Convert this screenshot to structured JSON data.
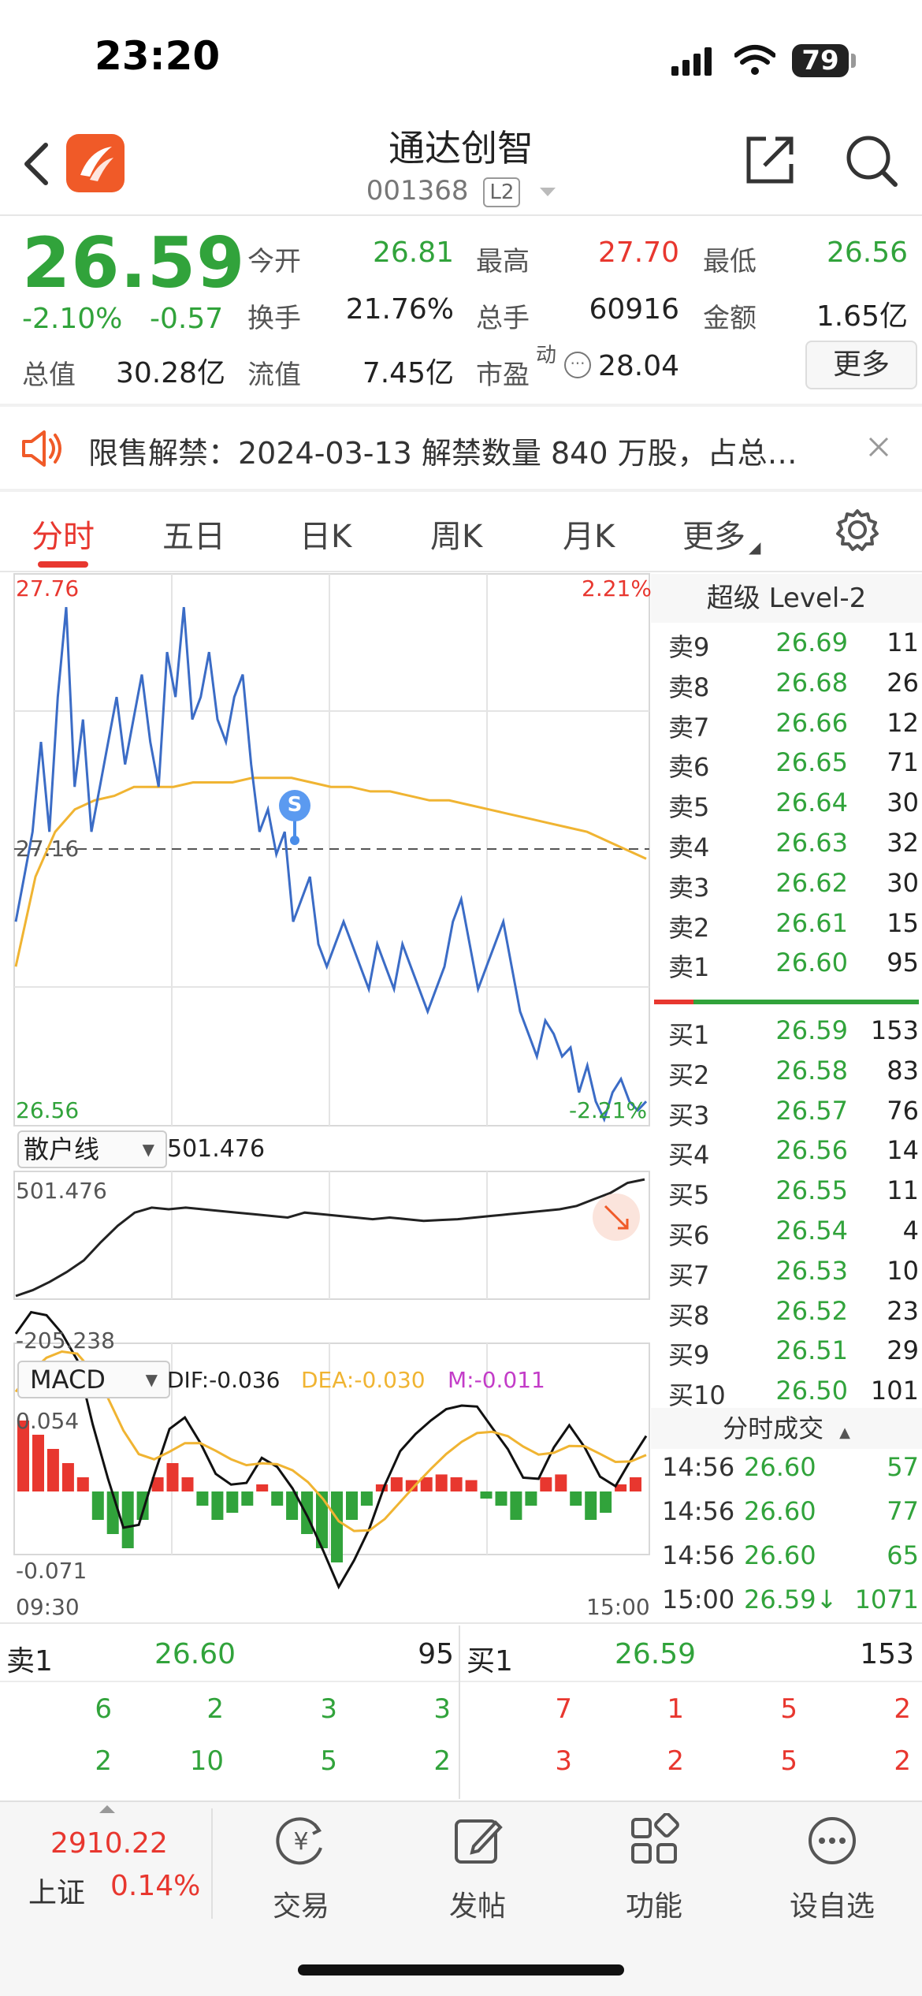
{
  "status_bar": {
    "time": "23:20",
    "battery": "79"
  },
  "header": {
    "title": "通达创智",
    "code": "001368",
    "level": "L2"
  },
  "quote": {
    "price": "26.59",
    "change_pct": "-2.10%",
    "change": "-0.57",
    "stats": [
      {
        "label": "今开",
        "value": "26.81",
        "color": "green"
      },
      {
        "label": "最高",
        "value": "27.70",
        "color": "red"
      },
      {
        "label": "最低",
        "value": "26.56",
        "color": "green"
      },
      {
        "label": "换手",
        "value": "21.76%",
        "color": "black"
      },
      {
        "label": "总手",
        "value": "60916",
        "color": "black"
      },
      {
        "label": "金额",
        "value": "1.65亿",
        "color": "black"
      },
      {
        "label": "总值",
        "value": "30.28亿",
        "color": "black"
      },
      {
        "label": "流值",
        "value": "7.45亿",
        "color": "black"
      },
      {
        "label": "市盈",
        "value": "28.04",
        "color": "black"
      }
    ],
    "pe_sup": "动",
    "more_label": "更多"
  },
  "notice": {
    "text": "限售解禁：2024-03-13 解禁数量 840 万股，占总…"
  },
  "tabs": [
    "分时",
    "五日",
    "日K",
    "周K",
    "月K",
    "更多"
  ],
  "intraday": {
    "high": "27.76",
    "high_pct": "2.21%",
    "low": "26.56",
    "low_pct": "-2.21%",
    "mid": "27.16",
    "marker": "S",
    "price_series": [
      27.0,
      27.1,
      27.2,
      27.4,
      27.2,
      27.5,
      27.7,
      27.3,
      27.45,
      27.2,
      27.3,
      27.4,
      27.5,
      27.35,
      27.45,
      27.55,
      27.4,
      27.3,
      27.6,
      27.5,
      27.7,
      27.45,
      27.5,
      27.6,
      27.45,
      27.4,
      27.5,
      27.55,
      27.35,
      27.2,
      27.25,
      27.15,
      27.2,
      27.0,
      27.05,
      27.1,
      26.95,
      26.9,
      26.95,
      27.0,
      26.95,
      26.9,
      26.85,
      26.95,
      26.9,
      26.85,
      26.95,
      26.9,
      26.85,
      26.8,
      26.85,
      26.9,
      27.0,
      27.05,
      26.95,
      26.85,
      26.9,
      26.95,
      27.0,
      26.9,
      26.8,
      26.75,
      26.7,
      26.78,
      26.75,
      26.7,
      26.72,
      26.62,
      26.68,
      26.6,
      26.56,
      26.62,
      26.65,
      26.6,
      26.58,
      26.6
    ],
    "avg_series": [
      26.9,
      27.1,
      27.2,
      27.25,
      27.27,
      27.28,
      27.3,
      27.3,
      27.3,
      27.31,
      27.31,
      27.31,
      27.32,
      27.32,
      27.32,
      27.31,
      27.3,
      27.3,
      27.29,
      27.29,
      27.28,
      27.27,
      27.27,
      27.26,
      27.25,
      27.24,
      27.23,
      27.22,
      27.21,
      27.2,
      27.18,
      27.16,
      27.14
    ],
    "retail_label": "散户线",
    "retail_value": "501.476",
    "retail_high": "501.476",
    "retail_low": "-205.238",
    "retail_series": [
      -205,
      -170,
      -120,
      -60,
      10,
      120,
      220,
      300,
      330,
      320,
      330,
      320,
      310,
      300,
      290,
      280,
      270,
      300,
      290,
      280,
      270,
      260,
      270,
      260,
      250,
      255,
      260,
      270,
      280,
      290,
      300,
      310,
      320,
      340,
      380,
      420,
      480,
      501
    ],
    "macd_label": "MACD",
    "dif": "DIF:-0.036",
    "dea": "DEA:-0.030",
    "m": "M:-0.011",
    "macd_high": "0.054",
    "macd_low": "-0.071",
    "time_start": "09:30",
    "time_end": "15:00",
    "macd_bars": [
      0.05,
      0.04,
      0.03,
      0.02,
      0.01,
      -0.02,
      -0.03,
      -0.04,
      -0.02,
      0.01,
      0.02,
      0.01,
      -0.01,
      -0.02,
      -0.015,
      -0.01,
      0.005,
      -0.01,
      -0.02,
      -0.03,
      -0.04,
      -0.05,
      -0.02,
      -0.01,
      0.005,
      0.01,
      0.008,
      0.01,
      0.012,
      0.01,
      0.008,
      -0.005,
      -0.01,
      -0.02,
      -0.01,
      0.01,
      0.012,
      -0.01,
      -0.02,
      -0.015,
      0.005,
      0.01
    ]
  },
  "orderbook": {
    "title": "超级 Level-2",
    "asks": [
      {
        "name": "卖9",
        "price": "26.69",
        "qty": "11"
      },
      {
        "name": "卖8",
        "price": "26.68",
        "qty": "26"
      },
      {
        "name": "卖7",
        "price": "26.66",
        "qty": "12"
      },
      {
        "name": "卖6",
        "price": "26.65",
        "qty": "71"
      },
      {
        "name": "卖5",
        "price": "26.64",
        "qty": "30"
      },
      {
        "name": "卖4",
        "price": "26.63",
        "qty": "32"
      },
      {
        "name": "卖3",
        "price": "26.62",
        "qty": "30"
      },
      {
        "name": "卖2",
        "price": "26.61",
        "qty": "15"
      },
      {
        "name": "卖1",
        "price": "26.60",
        "qty": "95"
      }
    ],
    "bids": [
      {
        "name": "买1",
        "price": "26.59",
        "qty": "153"
      },
      {
        "name": "买2",
        "price": "26.58",
        "qty": "83"
      },
      {
        "name": "买3",
        "price": "26.57",
        "qty": "76"
      },
      {
        "name": "买4",
        "price": "26.56",
        "qty": "14"
      },
      {
        "name": "买5",
        "price": "26.55",
        "qty": "11"
      },
      {
        "name": "买6",
        "price": "26.54",
        "qty": "4"
      },
      {
        "name": "买7",
        "price": "26.53",
        "qty": "10"
      },
      {
        "name": "买8",
        "price": "26.52",
        "qty": "23"
      },
      {
        "name": "买9",
        "price": "26.51",
        "qty": "29"
      },
      {
        "name": "买10",
        "price": "26.50",
        "qty": "101"
      }
    ],
    "ticks_title": "分时成交",
    "ticks": [
      {
        "time": "14:56",
        "price": "26.60",
        "qty": "57"
      },
      {
        "time": "14:56",
        "price": "26.60",
        "qty": "77"
      },
      {
        "time": "14:56",
        "price": "26.60",
        "qty": "65"
      },
      {
        "time": "15:00",
        "price": "26.59↓",
        "qty": "1071"
      }
    ]
  },
  "bottom_quote": {
    "sell_label": "卖1",
    "sell_price": "26.60",
    "sell_qty": "95",
    "buy_label": "买1",
    "buy_price": "26.59",
    "buy_qty": "153",
    "sell_queue": [
      [
        "6",
        "2",
        "3",
        "3"
      ],
      [
        "2",
        "10",
        "5",
        "2"
      ]
    ],
    "buy_queue": [
      [
        "7",
        "1",
        "5",
        "2"
      ],
      [
        "3",
        "2",
        "5",
        "2"
      ]
    ]
  },
  "bottom_bar": {
    "index_value": "2910.22",
    "index_name": "上证",
    "index_pct": "0.14%",
    "items": [
      "交易",
      "发帖",
      "功能",
      "设自选"
    ]
  }
}
